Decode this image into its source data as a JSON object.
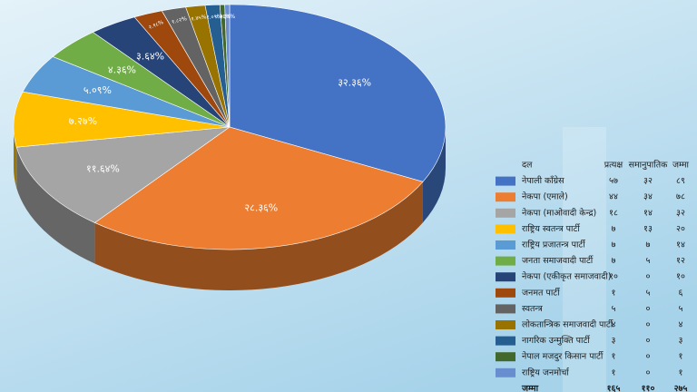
{
  "chart_data": {
    "type": "pie",
    "categories": [
      "नेपाली काँग्रेस",
      "नेकपा (एमाले)",
      "नेकपा (माओवादी केन्द्र)",
      "राष्ट्रिय स्वतन्त्र पार्टी",
      "राष्ट्रिय प्रजातन्त्र पार्टी",
      "जनता समाजवादी पार्टी",
      "नेकपा (एकीकृत समाजवादी)",
      "जनमत पार्टी",
      "स्वतन्त्र",
      "लोकतान्त्रिक समाजवादी पार्टी",
      "नागरिक उन्मुक्ति पार्टी",
      "नेपाल मजदुर किसान पार्टी",
      "राष्ट्रिय जनमोर्चा"
    ],
    "values": [
      32.36,
      28.36,
      11.64,
      7.27,
      5.09,
      4.36,
      3.64,
      2.18,
      1.82,
      1.45,
      1.09,
      0.36,
      0.36
    ],
    "value_labels": [
      "३२.३६%",
      "२८.३६%",
      "११.६४%",
      "७.२७%",
      "५.०९%",
      "४.३६%",
      "३.६४%",
      "२.१८%",
      "१.८२%",
      "१.४५%",
      "१.०९%",
      "०.३६%",
      "०.३६%"
    ],
    "colors": [
      "#4472c4",
      "#ed7d31",
      "#a5a5a5",
      "#ffc000",
      "#5b9bd5",
      "#70ad47",
      "#264478",
      "#9e480e",
      "#636363",
      "#997300",
      "#255e91",
      "#43682b",
      "#698ed0"
    ]
  },
  "table": {
    "header": [
      "दल",
      "प्रत्यक्ष",
      "समानुपातिक",
      "जम्मा"
    ],
    "rows": [
      [
        "५७",
        "३२",
        "८९"
      ],
      [
        "४४",
        "३४",
        "७८"
      ],
      [
        "१८",
        "१४",
        "३२"
      ],
      [
        "७",
        "१३",
        "२०"
      ],
      [
        "७",
        "७",
        "१४"
      ],
      [
        "७",
        "५",
        "१२"
      ],
      [
        "१०",
        "०",
        "१०"
      ],
      [
        "१",
        "५",
        "६"
      ],
      [
        "५",
        "०",
        "५"
      ],
      [
        "४",
        "०",
        "४"
      ],
      [
        "३",
        "०",
        "३"
      ],
      [
        "१",
        "०",
        "१"
      ],
      [
        "१",
        "०",
        "१"
      ]
    ],
    "total_row": [
      "जम्मा",
      "१६५",
      "११०",
      "२७५"
    ]
  }
}
